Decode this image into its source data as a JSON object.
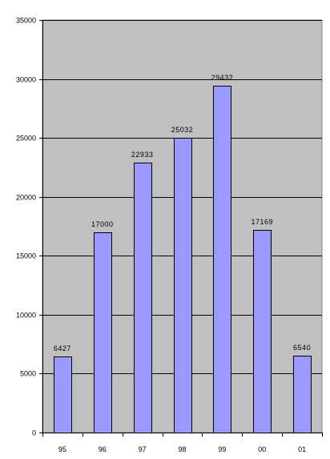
{
  "chart_data": {
    "type": "bar",
    "title": "",
    "xlabel": "",
    "ylabel": "",
    "categories": [
      "95",
      "96",
      "97",
      "98",
      "99",
      "00",
      "01"
    ],
    "values": [
      6427,
      17000,
      22933,
      25032,
      29432,
      17169,
      6540
    ],
    "data_labels": [
      "6427",
      "17000",
      "22933",
      "25032",
      "29432",
      "17169",
      "6540"
    ],
    "ylim": [
      0,
      35000
    ],
    "yticks": [
      0,
      5000,
      10000,
      15000,
      20000,
      25000,
      30000,
      35000
    ],
    "ytick_labels": [
      "0",
      "5000",
      "10000",
      "15000",
      "20000",
      "25000",
      "30000",
      "35000"
    ],
    "grid": true,
    "legend": "none",
    "colors": {
      "plot_background": "#c0c0c0",
      "bar_fill": "#9999ff",
      "bar_stroke": "#000000",
      "gridline": "#000000"
    }
  }
}
